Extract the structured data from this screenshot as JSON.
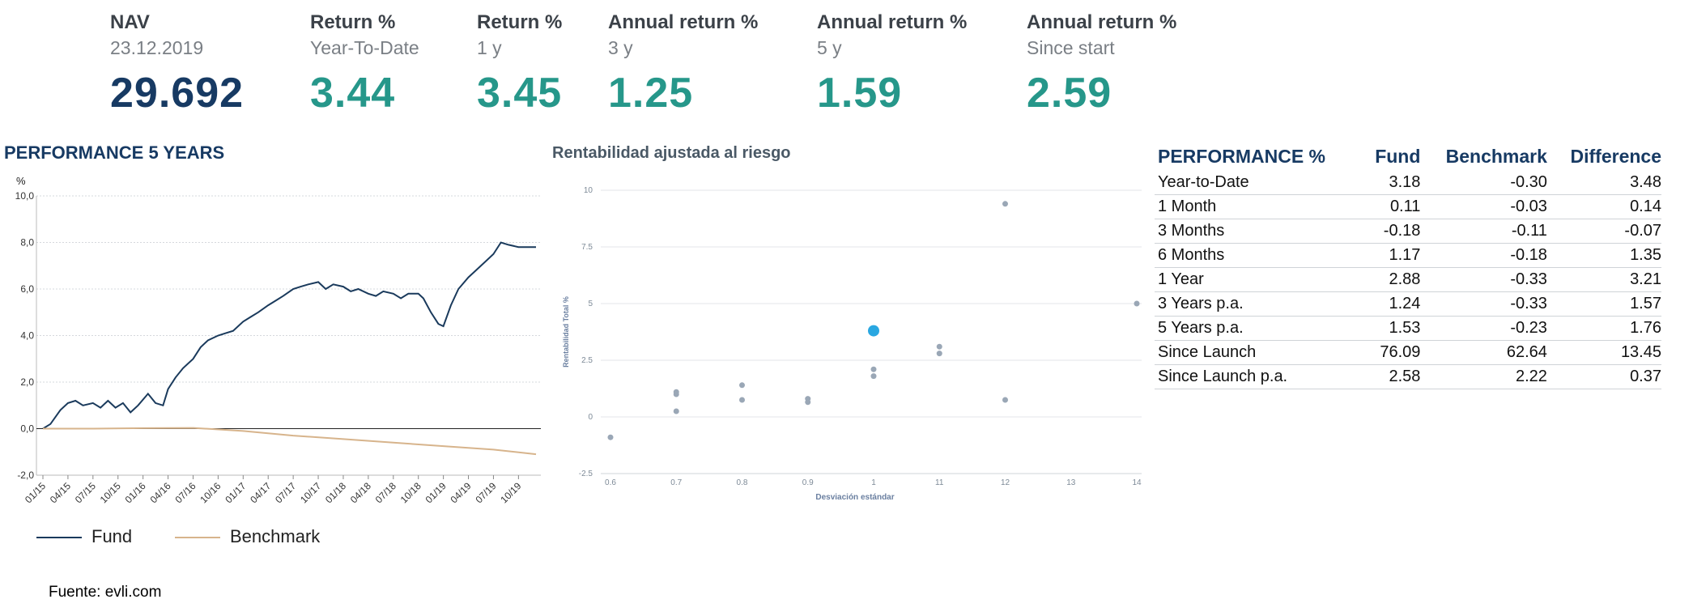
{
  "kpis": [
    {
      "label": "NAV",
      "sub": "23.12.2019",
      "value": "29.692",
      "kind": "nav"
    },
    {
      "label": "Return %",
      "sub": "Year-To-Date",
      "value": "3.44",
      "kind": "ret"
    },
    {
      "label": "Return %",
      "sub": "1 y",
      "value": "3.45",
      "kind": "ret"
    },
    {
      "label": "Annual return %",
      "sub": "3 y",
      "value": "1.25",
      "kind": "ret"
    },
    {
      "label": "Annual return %",
      "sub": "5 y",
      "value": "1.59",
      "kind": "ret"
    },
    {
      "label": "Annual return %",
      "sub": "Since start",
      "value": "2.59",
      "kind": "ret"
    }
  ],
  "colors": {
    "navy": "#173a63",
    "teal": "#26978a",
    "fund": "#1a3a5c",
    "benchmark": "#d7b48c",
    "scatter_gray": "#9aa7b6",
    "scatter_highlight": "#29a7e1"
  },
  "source": "Fuente: evli.com",
  "chart_data": [
    {
      "type": "line",
      "title": "PERFORMANCE 5 YEARS",
      "ylabel": "%",
      "ylim": [
        -2,
        10
      ],
      "yticks": [
        "-2,0",
        "0,0",
        "2,0",
        "4,0",
        "6,0",
        "8,0",
        "10,0"
      ],
      "ytick_values": [
        -2,
        0,
        2,
        4,
        6,
        8,
        10
      ],
      "x_categories": [
        "01/15",
        "04/15",
        "07/15",
        "10/15",
        "01/16",
        "04/16",
        "07/16",
        "10/16",
        "01/17",
        "04/17",
        "07/17",
        "10/17",
        "01/18",
        "04/18",
        "07/18",
        "10/18",
        "01/19",
        "04/19",
        "07/19",
        "10/19"
      ],
      "x_index_range": [
        0,
        19.7
      ],
      "series": [
        {
          "name": "Fund",
          "color": "#1a3a5c",
          "x": [
            0,
            0.3,
            0.7,
            1.0,
            1.3,
            1.6,
            2.0,
            2.3,
            2.6,
            2.9,
            3.2,
            3.5,
            3.8,
            4.2,
            4.5,
            4.8,
            5.0,
            5.3,
            5.6,
            6.0,
            6.3,
            6.6,
            7.0,
            7.3,
            7.6,
            8.0,
            8.3,
            8.6,
            9.0,
            9.3,
            9.6,
            10.0,
            10.3,
            10.6,
            11.0,
            11.3,
            11.6,
            12.0,
            12.3,
            12.6,
            13.0,
            13.3,
            13.6,
            14.0,
            14.3,
            14.6,
            15.0,
            15.2,
            15.5,
            15.8,
            16.0,
            16.3,
            16.6,
            17.0,
            17.3,
            17.6,
            18.0,
            18.3,
            18.6,
            19.0,
            19.3,
            19.7
          ],
          "y": [
            0,
            0.2,
            0.8,
            1.1,
            1.2,
            1.0,
            1.1,
            0.9,
            1.2,
            0.9,
            1.1,
            0.7,
            1.0,
            1.5,
            1.1,
            1.0,
            1.7,
            2.2,
            2.6,
            3.0,
            3.5,
            3.8,
            4.0,
            4.1,
            4.2,
            4.6,
            4.8,
            5.0,
            5.3,
            5.5,
            5.7,
            6.0,
            6.1,
            6.2,
            6.3,
            6.0,
            6.2,
            6.1,
            5.9,
            6.0,
            5.8,
            5.7,
            5.9,
            5.8,
            5.6,
            5.8,
            5.8,
            5.6,
            5.0,
            4.5,
            4.4,
            5.3,
            6.0,
            6.5,
            6.8,
            7.1,
            7.5,
            8.0,
            7.9,
            7.8,
            7.8,
            7.8
          ]
        },
        {
          "name": "Benchmark",
          "color": "#d7b48c",
          "x": [
            0,
            2,
            4,
            6,
            8,
            10,
            12,
            14,
            16,
            18,
            19.7
          ],
          "y": [
            0,
            0,
            0.02,
            0.03,
            -0.1,
            -0.3,
            -0.45,
            -0.6,
            -0.75,
            -0.9,
            -1.1
          ]
        }
      ],
      "hline": 0,
      "grid": true,
      "legend_position": "bottom-left"
    },
    {
      "type": "scatter",
      "title": "Rentabilidad ajustada al riesgo",
      "xlabel": "Desviación estándar",
      "ylabel": "Rentabilidad Total %",
      "xticks": [
        "0.6",
        "0.7",
        "0.8",
        "0.9",
        "1",
        "11",
        "12",
        "13",
        "14"
      ],
      "ylim": [
        -2.5,
        10
      ],
      "yticks": [
        "-2.5",
        "0",
        "2.5",
        "5",
        "7.5",
        "10"
      ],
      "ytick_values": [
        -2.5,
        0,
        2.5,
        5,
        7.5,
        10
      ],
      "grid": true,
      "points": [
        {
          "x": 0,
          "y": -0.9,
          "highlight": false
        },
        {
          "x": 1,
          "y": 1.1,
          "highlight": false
        },
        {
          "x": 1,
          "y": 1.0,
          "highlight": false
        },
        {
          "x": 1,
          "y": 0.25,
          "highlight": false
        },
        {
          "x": 2,
          "y": 1.4,
          "highlight": false
        },
        {
          "x": 2,
          "y": 0.75,
          "highlight": false
        },
        {
          "x": 3,
          "y": 0.8,
          "highlight": false
        },
        {
          "x": 3,
          "y": 0.65,
          "highlight": false
        },
        {
          "x": 4,
          "y": 3.8,
          "highlight": true
        },
        {
          "x": 4,
          "y": 2.1,
          "highlight": false
        },
        {
          "x": 4,
          "y": 1.8,
          "highlight": false
        },
        {
          "x": 5,
          "y": 3.1,
          "highlight": false
        },
        {
          "x": 5,
          "y": 2.8,
          "highlight": false
        },
        {
          "x": 6,
          "y": 9.4,
          "highlight": false
        },
        {
          "x": 6,
          "y": 0.75,
          "highlight": false
        },
        {
          "x": 8,
          "y": 5.0,
          "highlight": false
        }
      ]
    }
  ],
  "performance_table": {
    "headers": [
      "PERFORMANCE %",
      "Fund",
      "Benchmark",
      "Difference"
    ],
    "rows": [
      [
        "Year-to-Date",
        "3.18",
        "-0.30",
        "3.48"
      ],
      [
        "1 Month",
        "0.11",
        "-0.03",
        "0.14"
      ],
      [
        "3 Months",
        "-0.18",
        "-0.11",
        "-0.07"
      ],
      [
        "6 Months",
        "1.17",
        "-0.18",
        "1.35"
      ],
      [
        "1 Year",
        "2.88",
        "-0.33",
        "3.21"
      ],
      [
        "3 Years p.a.",
        "1.24",
        "-0.33",
        "1.57"
      ],
      [
        "5 Years p.a.",
        "1.53",
        "-0.23",
        "1.76"
      ],
      [
        "Since Launch",
        "76.09",
        "62.64",
        "13.45"
      ],
      [
        "Since Launch p.a.",
        "2.58",
        "2.22",
        "0.37"
      ]
    ]
  }
}
